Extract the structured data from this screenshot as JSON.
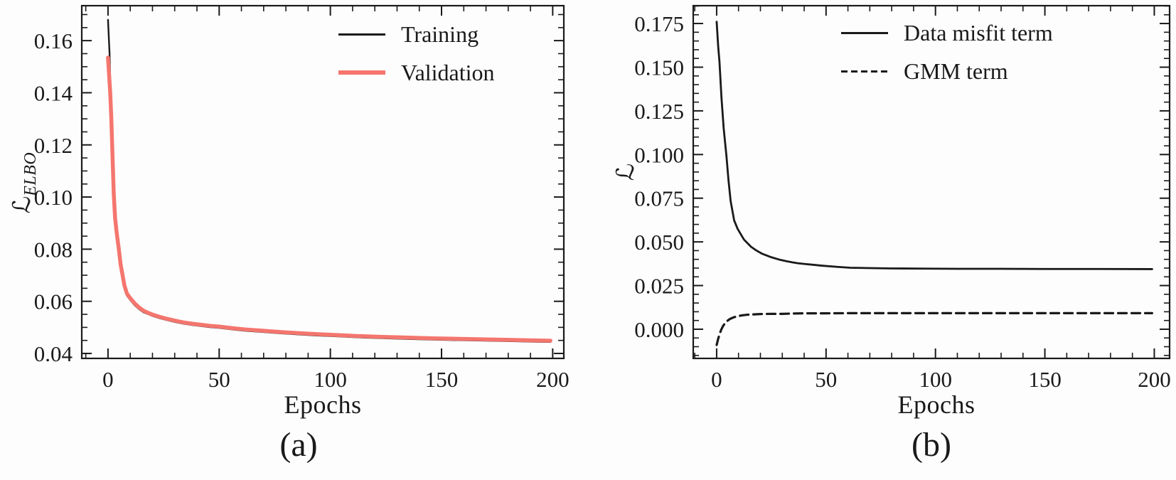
{
  "figure": {
    "background": "#fdfdfd",
    "text_color": "#1a1a1a",
    "accent_validation": "#f4766e",
    "xlabel": "Epochs"
  },
  "chart_data": [
    {
      "id": "a",
      "type": "line",
      "caption": "(a)",
      "xlabel": "Epochs",
      "ylabel_main": "ℒ",
      "ylabel_sub": "ELBO",
      "xlim": [
        -11.8,
        205
      ],
      "ylim": [
        0.0381,
        0.1734
      ],
      "xticks": [
        0,
        50,
        100,
        150,
        200
      ],
      "xtick_labels": [
        "0",
        "50",
        "100",
        "150",
        "200"
      ],
      "yticks": [
        0.04,
        0.06,
        0.08,
        0.1,
        0.12,
        0.14,
        0.16
      ],
      "ytick_labels": [
        "0.04",
        "0.06",
        "0.08",
        "0.10",
        "0.12",
        "0.14",
        "0.16"
      ],
      "x_minor_step": 10,
      "y_minor_step": 0.005,
      "grid": false,
      "legend_position": "top-right-inside",
      "series": [
        {
          "name": "Training",
          "color": "#1a1a1a",
          "width": 2.4,
          "dash": null,
          "points": [
            [
              0,
              0.168
            ],
            [
              0.7,
              0.155
            ],
            [
              1.5,
              0.128
            ],
            [
              2,
              0.115
            ],
            [
              2.6,
              0.0995
            ],
            [
              3.2,
              0.0905
            ],
            [
              4,
              0.0845
            ],
            [
              4.8,
              0.0795
            ],
            [
              5.7,
              0.073
            ],
            [
              6.6,
              0.069
            ],
            [
              7.4,
              0.0652
            ],
            [
              8.5,
              0.0622
            ],
            [
              10,
              0.0605
            ],
            [
              12,
              0.0585
            ],
            [
              14,
              0.057
            ],
            [
              16,
              0.0558
            ],
            [
              18,
              0.0551
            ],
            [
              20,
              0.0544
            ],
            [
              23,
              0.0536
            ],
            [
              26,
              0.0529
            ],
            [
              30,
              0.0521
            ],
            [
              34,
              0.0514
            ],
            [
              38,
              0.0509
            ],
            [
              42,
              0.0505
            ],
            [
              46,
              0.0501
            ],
            [
              50,
              0.0498
            ],
            [
              56,
              0.0492
            ],
            [
              62,
              0.0487
            ],
            [
              70,
              0.0482
            ],
            [
              78,
              0.0477
            ],
            [
              86,
              0.0473
            ],
            [
              94,
              0.0469
            ],
            [
              102,
              0.0466
            ],
            [
              112,
              0.0462
            ],
            [
              122,
              0.0459
            ],
            [
              134,
              0.0456
            ],
            [
              146,
              0.0453
            ],
            [
              158,
              0.0451
            ],
            [
              170,
              0.0449
            ],
            [
              182,
              0.0447
            ],
            [
              192,
              0.0445
            ],
            [
              199,
              0.0444
            ]
          ]
        },
        {
          "name": "Validation",
          "color": "#f4766e",
          "width": 5.5,
          "dash": null,
          "points": [
            [
              0,
              0.1535
            ],
            [
              1,
              0.14
            ],
            [
              1.5,
              0.13
            ],
            [
              2,
              0.1165
            ],
            [
              2.6,
              0.101
            ],
            [
              3.2,
              0.0918
            ],
            [
              4,
              0.0856
            ],
            [
              4.8,
              0.0805
            ],
            [
              5.7,
              0.074
            ],
            [
              6.6,
              0.0698
            ],
            [
              7.4,
              0.066
            ],
            [
              8.5,
              0.063
            ],
            [
              10,
              0.0612
            ],
            [
              12,
              0.0592
            ],
            [
              14,
              0.0576
            ],
            [
              16,
              0.0564
            ],
            [
              18,
              0.0556
            ],
            [
              20,
              0.0549
            ],
            [
              23,
              0.0541
            ],
            [
              26,
              0.0534
            ],
            [
              30,
              0.0526
            ],
            [
              34,
              0.0519
            ],
            [
              38,
              0.0514
            ],
            [
              42,
              0.051
            ],
            [
              46,
              0.0506
            ],
            [
              50,
              0.0503
            ],
            [
              56,
              0.0497
            ],
            [
              62,
              0.0492
            ],
            [
              70,
              0.0487
            ],
            [
              78,
              0.0482
            ],
            [
              86,
              0.0478
            ],
            [
              94,
              0.0474
            ],
            [
              102,
              0.0471
            ],
            [
              112,
              0.0467
            ],
            [
              122,
              0.0464
            ],
            [
              134,
              0.0461
            ],
            [
              146,
              0.0458
            ],
            [
              158,
              0.0456
            ],
            [
              170,
              0.0454
            ],
            [
              182,
              0.0452
            ],
            [
              192,
              0.045
            ],
            [
              199,
              0.0449
            ]
          ]
        }
      ]
    },
    {
      "id": "b",
      "type": "line",
      "caption": "(b)",
      "xlabel": "Epochs",
      "ylabel_main": "ℒ",
      "ylabel_sub": "",
      "xlim": [
        -10.7,
        207
      ],
      "ylim": [
        -0.0167,
        0.1852
      ],
      "xticks": [
        0,
        50,
        100,
        150,
        200
      ],
      "xtick_labels": [
        "0",
        "50",
        "100",
        "150",
        "200"
      ],
      "yticks": [
        0.0,
        0.025,
        0.05,
        0.075,
        0.1,
        0.125,
        0.15,
        0.175
      ],
      "ytick_labels": [
        "0.000",
        "0.025",
        "0.050",
        "0.075",
        "0.100",
        "0.125",
        "0.150",
        "0.175"
      ],
      "x_minor_step": 10,
      "y_minor_step": 0.005,
      "grid": false,
      "legend_position": "top-right-inside",
      "series": [
        {
          "name": "Data misfit term",
          "color": "#1a1a1a",
          "width": 2.8,
          "dash": null,
          "points": [
            [
              0,
              0.176
            ],
            [
              0.7,
              0.162
            ],
            [
              1.3,
              0.153
            ],
            [
              2.2,
              0.1327
            ],
            [
              3.2,
              0.1152
            ],
            [
              4.5,
              0.0989
            ],
            [
              5.4,
              0.0855
            ],
            [
              6.4,
              0.0733
            ],
            [
              8,
              0.0623
            ],
            [
              9.6,
              0.0574
            ],
            [
              12.5,
              0.0513
            ],
            [
              15.7,
              0.0472
            ],
            [
              18,
              0.0452
            ],
            [
              20.8,
              0.0432
            ],
            [
              25,
              0.0412
            ],
            [
              28.5,
              0.0399
            ],
            [
              32,
              0.0389
            ],
            [
              35,
              0.0382
            ],
            [
              37,
              0.0378
            ],
            [
              40,
              0.0374
            ],
            [
              44,
              0.0369
            ],
            [
              48,
              0.0364
            ],
            [
              55,
              0.0357
            ],
            [
              61,
              0.0352
            ],
            [
              70,
              0.035
            ],
            [
              80,
              0.0348
            ],
            [
              95,
              0.0347
            ],
            [
              110,
              0.0346
            ],
            [
              130,
              0.0346
            ],
            [
              150,
              0.0345
            ],
            [
              175,
              0.0345
            ],
            [
              199,
              0.0344
            ]
          ]
        },
        {
          "name": "GMM term",
          "color": "#1a1a1a",
          "width": 3.2,
          "dash": "12 7",
          "points": [
            [
              0,
              -0.009
            ],
            [
              0.7,
              -0.0055
            ],
            [
              1.5,
              -0.0022
            ],
            [
              2.2,
              0.0
            ],
            [
              3,
              0.002
            ],
            [
              4,
              0.0037
            ],
            [
              5,
              0.0049
            ],
            [
              6,
              0.0058
            ],
            [
              7,
              0.0064
            ],
            [
              8,
              0.0069
            ],
            [
              10,
              0.0076
            ],
            [
              12,
              0.008
            ],
            [
              14,
              0.0083
            ],
            [
              17,
              0.0085
            ],
            [
              20,
              0.0087
            ],
            [
              25,
              0.0088
            ],
            [
              30,
              0.0088
            ],
            [
              35,
              0.009
            ],
            [
              40,
              0.0091
            ],
            [
              50,
              0.0091
            ],
            [
              60,
              0.0092
            ],
            [
              80,
              0.0092
            ],
            [
              100,
              0.0092
            ],
            [
              130,
              0.0092
            ],
            [
              160,
              0.0092
            ],
            [
              199,
              0.0092
            ]
          ]
        }
      ]
    }
  ]
}
